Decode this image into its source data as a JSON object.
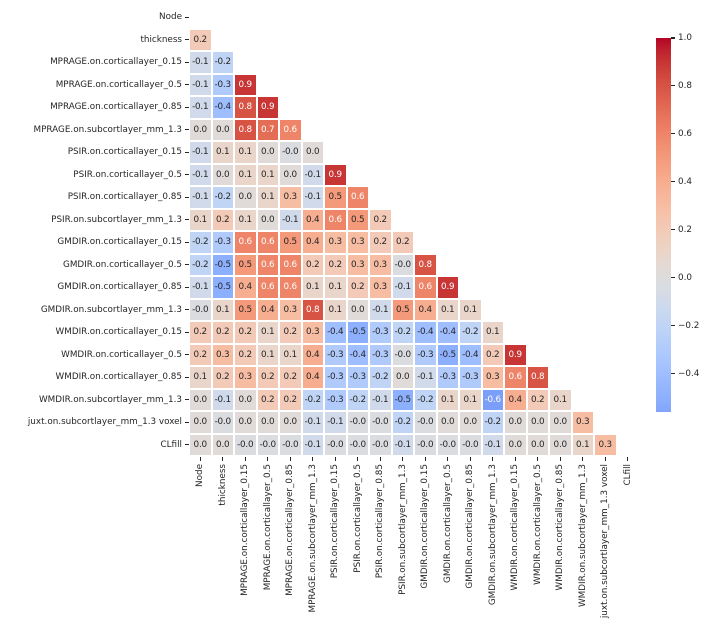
{
  "chart_data": {
    "type": "heatmap",
    "title": "",
    "subtitle": "",
    "triangle": "lower",
    "grid": "white cell separators",
    "legend_position": "colorbar-right",
    "variables": [
      "Node",
      "thickness",
      "MPRAGE.on.corticallayer_0.15",
      "MPRAGE.on.corticallayer_0.5",
      "MPRAGE.on.corticallayer_0.85",
      "MPRAGE.on.subcortlayer_mm_1.3",
      "PSIR.on.corticallayer_0.15",
      "PSIR.on.corticallayer_0.5",
      "PSIR.on.corticallayer_0.85",
      "PSIR.on.subcortlayer_mm_1.3",
      "GMDIR.on.corticallayer_0.15",
      "GMDIR.on.corticallayer_0.5",
      "GMDIR.on.corticallayer_0.85",
      "GMDIR.on.subcortlayer_mm_1.3",
      "WMDIR.on.corticallayer_0.15",
      "WMDIR.on.corticallayer_0.5",
      "WMDIR.on.corticallayer_0.85",
      "WMDIR.on.subcortlayer_mm_1.3",
      "juxt.on.subcortlayer_mm_1.3 voxel",
      "CLfill"
    ],
    "cell_text": [
      [],
      [
        "0.2"
      ],
      [
        "-0.1",
        "-0.2"
      ],
      [
        "-0.1",
        "-0.3",
        "0.9"
      ],
      [
        "-0.1",
        "-0.4",
        "0.8",
        "0.9"
      ],
      [
        "0.0",
        "0.0",
        "0.8",
        "0.7",
        "0.6"
      ],
      [
        "-0.1",
        "0.1",
        "0.1",
        "0.0",
        "-0.0",
        "0.0"
      ],
      [
        "-0.1",
        "0.0",
        "0.1",
        "0.1",
        "0.0",
        "-0.1",
        "0.9"
      ],
      [
        "-0.1",
        "-0.2",
        "0.0",
        "0.1",
        "0.3",
        "-0.1",
        "0.5",
        "0.6"
      ],
      [
        "0.1",
        "0.2",
        "0.1",
        "0.0",
        "-0.1",
        "0.4",
        "0.6",
        "0.5",
        "0.2"
      ],
      [
        "-0.2",
        "-0.3",
        "0.6",
        "0.6",
        "0.5",
        "0.4",
        "0.3",
        "0.3",
        "0.2",
        "0.2"
      ],
      [
        "-0.2",
        "-0.5",
        "0.5",
        "0.6",
        "0.6",
        "0.2",
        "0.2",
        "0.3",
        "0.3",
        "-0.0",
        "0.8"
      ],
      [
        "-0.1",
        "-0.5",
        "0.4",
        "0.6",
        "0.6",
        "0.1",
        "0.1",
        "0.2",
        "0.3",
        "-0.1",
        "0.6",
        "0.9"
      ],
      [
        "-0.0",
        "0.1",
        "0.5",
        "0.4",
        "0.3",
        "0.8",
        "0.1",
        "0.0",
        "-0.1",
        "0.5",
        "0.4",
        "0.1",
        "0.1"
      ],
      [
        "0.2",
        "0.2",
        "0.2",
        "0.1",
        "0.2",
        "0.3",
        "-0.4",
        "-0.5",
        "-0.3",
        "-0.2",
        "-0.4",
        "-0.4",
        "-0.2",
        "0.1"
      ],
      [
        "0.2",
        "0.3",
        "0.2",
        "0.1",
        "0.1",
        "0.4",
        "-0.3",
        "-0.4",
        "-0.3",
        "-0.0",
        "-0.3",
        "-0.5",
        "-0.4",
        "0.2",
        "0.9"
      ],
      [
        "0.1",
        "0.2",
        "0.3",
        "0.2",
        "0.2",
        "0.4",
        "-0.3",
        "-0.3",
        "-0.2",
        "0.0",
        "-0.1",
        "-0.3",
        "-0.3",
        "0.3",
        "0.6",
        "0.8"
      ],
      [
        "0.0",
        "-0.1",
        "0.0",
        "0.2",
        "0.2",
        "-0.2",
        "-0.3",
        "-0.2",
        "-0.1",
        "-0.5",
        "-0.2",
        "0.1",
        "0.1",
        "-0.6",
        "0.4",
        "0.2",
        "0.1"
      ],
      [
        "0.0",
        "-0.0",
        "0.0",
        "0.0",
        "0.0",
        "-0.1",
        "-0.1",
        "-0.0",
        "-0.0",
        "-0.2",
        "-0.0",
        "0.0",
        "0.0",
        "-0.2",
        "0.0",
        "0.0",
        "0.0",
        "0.3"
      ],
      [
        "0.0",
        "0.0",
        "-0.0",
        "-0.0",
        "-0.0",
        "-0.1",
        "-0.0",
        "-0.0",
        "-0.0",
        "-0.1",
        "-0.0",
        "-0.0",
        "-0.0",
        "-0.1",
        "0.0",
        "0.0",
        "0.0",
        "0.1",
        "0.3"
      ]
    ],
    "colormap": {
      "name": "coolwarm",
      "center": 0,
      "vmax": 1.0,
      "vmin": -0.56,
      "max_color": "#b40426",
      "mid_color": "#dddddd",
      "min_color": "#82a5fb"
    },
    "colorbar": {
      "tick_labels": [
        "1.0",
        "0.8",
        "0.6",
        "0.4",
        "0.2",
        "0.0",
        "−0.2",
        "−0.4"
      ],
      "tick_values": [
        1.0,
        0.8,
        0.6,
        0.4,
        0.2,
        0.0,
        -0.2,
        -0.4
      ]
    }
  }
}
